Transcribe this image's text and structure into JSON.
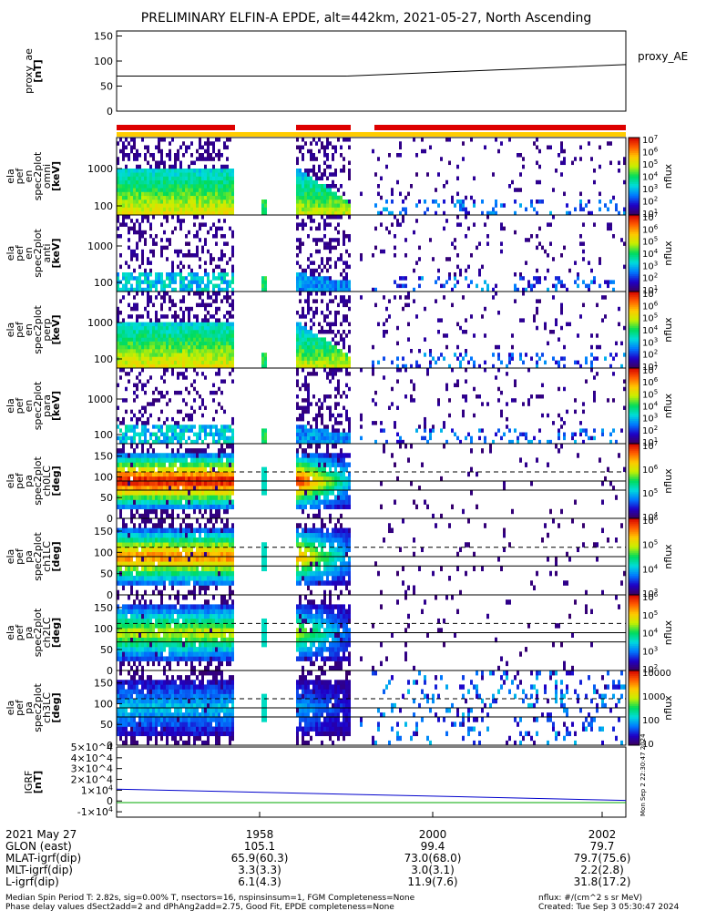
{
  "title": "PRELIMINARY ELFIN-A EPDE, alt=442km, 2021-05-27, North Ascending",
  "colors": {
    "bar_red": "#dd0000",
    "bar_yellow": "#ffcc00",
    "line_black": "#000000",
    "igrf_blue": "#0000cc",
    "igrf_green": "#00aa00"
  },
  "chart_data": [
    {
      "type": "line",
      "panel": "proxy_ae",
      "ylabel": [
        "proxy_ae",
        "[nT]"
      ],
      "legend": "proxy_AE",
      "yticks": [
        "0",
        "50",
        "100",
        "150"
      ],
      "ylim": [
        0,
        160
      ],
      "series": [
        {
          "name": "proxy_AE",
          "x": [
            0,
            0.45,
            1
          ],
          "values": [
            70,
            70,
            93
          ]
        }
      ]
    },
    {
      "type": "heatmap",
      "panel": "spec_omni",
      "ylabel": [
        "ela",
        "pef",
        "en",
        "spec2plot",
        "omni",
        "[keV]"
      ],
      "yticks": [
        "100",
        "1000"
      ],
      "cbar_ticks": [
        "10^1",
        "10^2",
        "10^3",
        "10^4",
        "10^5",
        "10^6",
        "10^7"
      ],
      "cbar_label": "nflux"
    },
    {
      "type": "heatmap",
      "panel": "spec_anti",
      "ylabel": [
        "ela",
        "pef",
        "en",
        "spec2plot",
        "anti",
        "[keV]"
      ],
      "yticks": [
        "100",
        "1000"
      ],
      "cbar_ticks": [
        "10^1",
        "10^2",
        "10^3",
        "10^4",
        "10^5",
        "10^6",
        "10^7"
      ],
      "cbar_label": "nflux"
    },
    {
      "type": "heatmap",
      "panel": "spec_perp",
      "ylabel": [
        "ela",
        "pef",
        "en",
        "spec2plot",
        "perp",
        "[keV]"
      ],
      "yticks": [
        "100",
        "1000"
      ],
      "cbar_ticks": [
        "10^1",
        "10^2",
        "10^3",
        "10^4",
        "10^5",
        "10^6",
        "10^7"
      ],
      "cbar_label": "nflux"
    },
    {
      "type": "heatmap",
      "panel": "spec_para",
      "ylabel": [
        "ela",
        "pef",
        "en",
        "spec2plot",
        "para",
        "[keV]"
      ],
      "yticks": [
        "100",
        "1000"
      ],
      "cbar_ticks": [
        "10^1",
        "10^2",
        "10^3",
        "10^4",
        "10^5",
        "10^6",
        "10^7"
      ],
      "cbar_label": "nflux"
    },
    {
      "type": "heatmap",
      "panel": "pa_ch0",
      "ylabel": [
        "ela",
        "pef",
        "pa",
        "spec2plot",
        "ch0LC",
        "[deg]"
      ],
      "yticks": [
        "0",
        "50",
        "100",
        "150"
      ],
      "cbar_ticks": [
        "10^4",
        "10^5",
        "10^6",
        "10^7"
      ],
      "cbar_label": "nflux"
    },
    {
      "type": "heatmap",
      "panel": "pa_ch1",
      "ylabel": [
        "ela",
        "pef",
        "pa",
        "spec2plot",
        "ch1LC",
        "[deg]"
      ],
      "yticks": [
        "0",
        "50",
        "100",
        "150"
      ],
      "cbar_ticks": [
        "10^3",
        "10^4",
        "10^5",
        "10^6"
      ],
      "cbar_label": "nflux"
    },
    {
      "type": "heatmap",
      "panel": "pa_ch2",
      "ylabel": [
        "ela",
        "pef",
        "pa",
        "spec2plot",
        "ch2LC",
        "[deg]"
      ],
      "yticks": [
        "0",
        "50",
        "100",
        "150"
      ],
      "cbar_ticks": [
        "10^2",
        "10^3",
        "10^4",
        "10^5",
        "10^6"
      ],
      "cbar_label": "nflux"
    },
    {
      "type": "heatmap",
      "panel": "pa_ch3",
      "ylabel": [
        "ela",
        "pef",
        "pa",
        "spec2plot",
        "ch3LC",
        "[deg]"
      ],
      "yticks": [
        "0",
        "50",
        "100",
        "150"
      ],
      "cbar_ticks": [
        "10",
        "100",
        "1000",
        "10000"
      ],
      "cbar_label": "nflux"
    },
    {
      "type": "line",
      "panel": "igrf",
      "ylabel": [
        "IGRF",
        "[nT]"
      ],
      "yticks": [
        "-1×10^4",
        "0",
        "1×10^4",
        "2×10^4",
        "3×10^4",
        "4×10^4",
        "5×10^4"
      ],
      "ylim": [
        -15000,
        50000
      ],
      "series": [
        {
          "x": [
            0,
            1
          ],
          "values": [
            11000,
            500
          ]
        },
        {
          "x": [
            0,
            1
          ],
          "values": [
            -1500,
            -1500
          ]
        }
      ]
    }
  ],
  "x_axis": {
    "tick_labels": [
      "1958",
      "2000",
      "2002"
    ],
    "row_labels": [
      "2021 May 27",
      "GLON (east)",
      "MLAT-igrf(dip)",
      "MLT-igrf(dip)",
      "L-igrf(dip)"
    ],
    "columns": [
      [
        "",
        "105.1",
        "65.9(60.3)",
        "3.3(3.3)",
        "6.1(4.3)"
      ],
      [
        "",
        "99.4",
        "73.0(68.0)",
        "3.0(3.1)",
        "11.9(7.6)"
      ],
      [
        "",
        "79.7",
        "79.7(75.6)",
        "2.2(2.8)",
        "31.8(17.2)"
      ]
    ]
  },
  "side_stamp": "Mon Sep 2 22:30:47 2024",
  "footer": {
    "line1_left": "Median Spin Period T: 2.82s, sig=0.00% T, nsectors=16, nspinsinsum=1, FGM Completeness=None",
    "line2_left": "Phase delay values dSect2add=2 and dPhAng2add=2.75, Good Fit, EPDE completeness=None",
    "line1_right": "nflux: #/(cm^2 s sr MeV)",
    "line2_right": "Created: Tue Sep  3 05:30:47 2024"
  }
}
